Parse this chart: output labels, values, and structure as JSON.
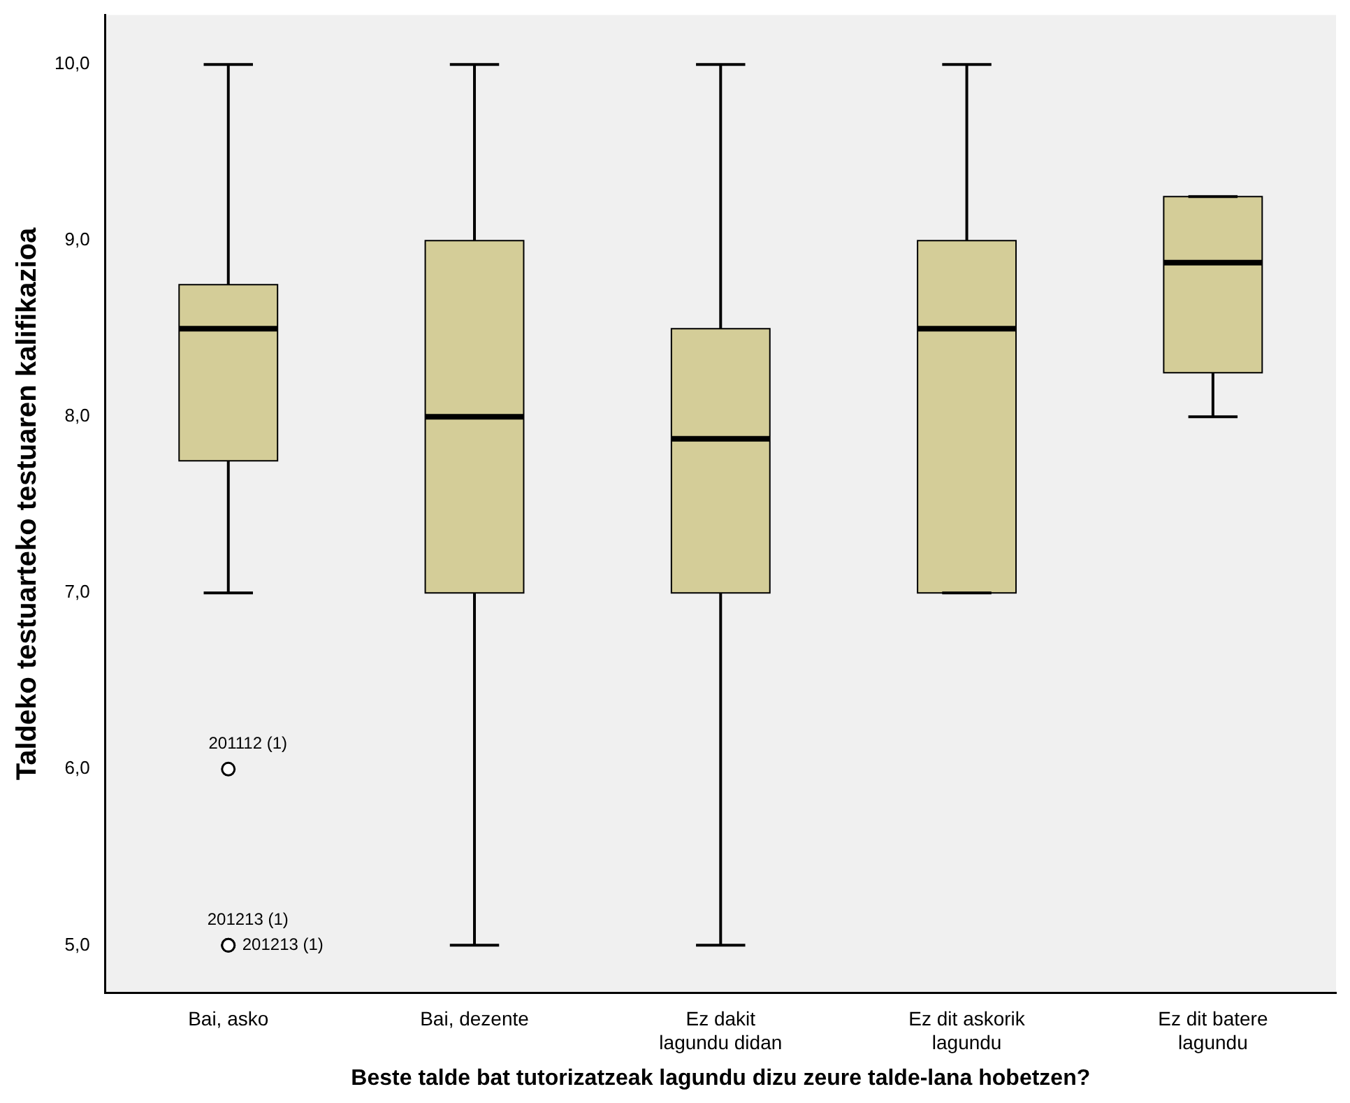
{
  "chart_data": {
    "type": "box",
    "xlabel": "Beste talde bat tutorizatzeak lagundu dizu zeure talde-lana hobetzen?",
    "ylabel": "Taldeko testuarteko testuaren kalifikazioa",
    "categories": [
      "Bai, asko",
      "Bai, dezente",
      "Ez dakit lagundu didan",
      "Ez dit askorik lagundu",
      "Ez dit batere lagundu"
    ],
    "color": "#d4cd98",
    "boxes": [
      {
        "low": 7,
        "q1": 7.75,
        "median": 8.5,
        "q3": 8.75,
        "high": 10,
        "outliers": [
          6,
          5,
          5
        ]
      },
      {
        "low": 5,
        "q1": 7,
        "median": 8,
        "q3": 9,
        "high": 10
      },
      {
        "low": 5,
        "q1": 7,
        "median": 7.875,
        "q3": 8.5,
        "high": 10
      },
      {
        "low": 7,
        "q1": 7,
        "median": 8.5,
        "q3": 9,
        "high": 10
      },
      {
        "low": 8,
        "q1": 8.25,
        "median": 8.875,
        "q3": 9.25,
        "high": 9.25
      }
    ],
    "ylim": [
      4.73,
      10.28
    ],
    "yticks": [
      {
        "value": 5,
        "label": "5,0"
      },
      {
        "value": 6,
        "label": "6,0"
      },
      {
        "value": 7,
        "label": "7,0"
      },
      {
        "value": 8,
        "label": "8,0"
      },
      {
        "value": 9,
        "label": "9,0"
      },
      {
        "value": 10,
        "label": "10,0"
      }
    ],
    "annotations": [
      "201112 (1)",
      "201213 (1)",
      "201213 (1)"
    ],
    "grid": false,
    "legend": false
  }
}
